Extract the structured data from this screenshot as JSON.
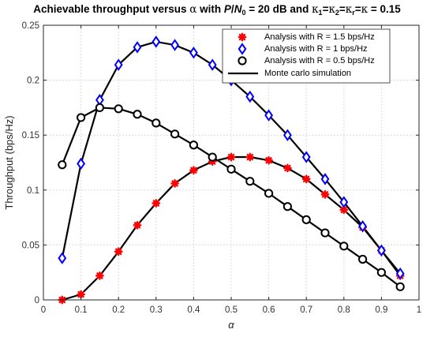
{
  "chart_data": {
    "type": "line",
    "title": {
      "prefix": "Achievable throughput versus ",
      "alpha_symbol": "α",
      "mid1": " with ",
      "snr_P": "P",
      "snr_slash": "/",
      "snr_N": "N",
      "snr_N_sub": "0",
      "snr_rest": " = 20 dB and ",
      "kappa": "κ",
      "sub1": "1",
      "sub2": "2",
      "subr": "r",
      "eq": "=",
      "tail": " = 0.15"
    },
    "xlabel": "α",
    "ylabel": "Throughput (bps/Hz)",
    "xlim": [
      0,
      1
    ],
    "ylim": [
      0,
      0.25
    ],
    "xticks": [
      "0",
      "0.1",
      "0.2",
      "0.3",
      "0.4",
      "0.5",
      "0.6",
      "0.7",
      "0.8",
      "0.9",
      "1"
    ],
    "yticks": [
      "0",
      "0.05",
      "0.1",
      "0.15",
      "0.2",
      "0.25"
    ],
    "grid": true,
    "legend_position": "top-right",
    "x": [
      0.05,
      0.1,
      0.15,
      0.2,
      0.25,
      0.3,
      0.35,
      0.4,
      0.45,
      0.5,
      0.55,
      0.6,
      0.65,
      0.7,
      0.75,
      0.8,
      0.85,
      0.9,
      0.95
    ],
    "series": [
      {
        "name": "Analysis with R = 1.5 bps/Hz",
        "marker": "asterisk",
        "color": "#ff0000",
        "values": [
          0.0,
          0.005,
          0.022,
          0.044,
          0.068,
          0.088,
          0.106,
          0.118,
          0.126,
          0.13,
          0.13,
          0.127,
          0.12,
          0.11,
          0.096,
          0.082,
          0.066,
          0.045,
          0.022
        ]
      },
      {
        "name": "Analysis with R = 1 bps/Hz",
        "marker": "diamond",
        "color": "#0000ff",
        "values": [
          0.038,
          0.124,
          0.182,
          0.214,
          0.23,
          0.235,
          0.232,
          0.225,
          0.214,
          0.2,
          0.185,
          0.168,
          0.15,
          0.13,
          0.11,
          0.089,
          0.067,
          0.045,
          0.024
        ]
      },
      {
        "name": "Analysis with R = 0.5 bps/Hz",
        "marker": "circle",
        "color": "#000000",
        "values": [
          0.123,
          0.166,
          0.175,
          0.174,
          0.169,
          0.161,
          0.151,
          0.141,
          0.13,
          0.119,
          0.108,
          0.097,
          0.085,
          0.073,
          0.061,
          0.049,
          0.037,
          0.025,
          0.012
        ]
      },
      {
        "name": "Monte carlo simulation",
        "marker": "line",
        "color": "#000000"
      }
    ]
  }
}
